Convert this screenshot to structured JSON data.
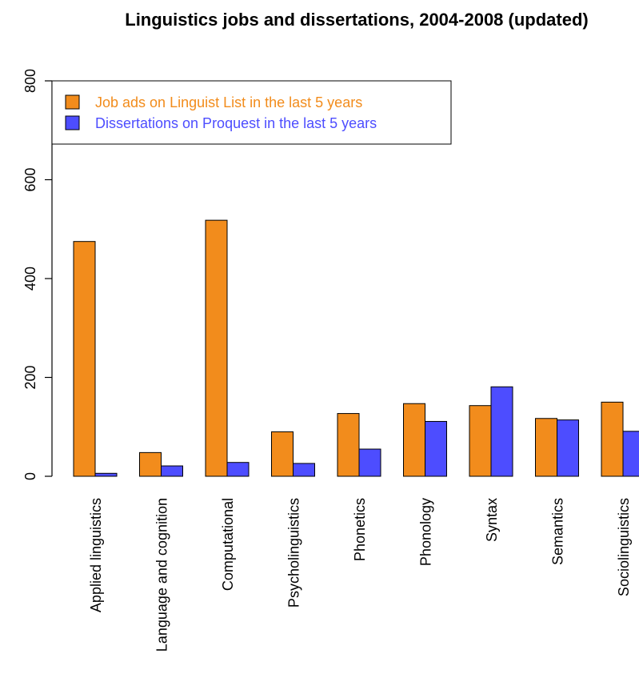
{
  "chart_data": {
    "type": "bar",
    "title": "Linguistics jobs and dissertations, 2004-2008 (updated)",
    "xlabel": "",
    "ylabel": "",
    "ylim": [
      0,
      800
    ],
    "yticks": [
      "0",
      "200",
      "400",
      "600",
      "800"
    ],
    "grid": false,
    "legend_position": "top-left",
    "categories": [
      "Applied linguistics",
      "Language and cognition",
      "Computational",
      "Psycholinguistics",
      "Phonetics",
      "Phonology",
      "Syntax",
      "Semantics",
      "Sociolinguistics"
    ],
    "series": [
      {
        "name": "Job ads on Linguist List in the last 5 years",
        "color": "#f28c1c",
        "values": [
          475,
          48,
          518,
          90,
          127,
          147,
          143,
          117,
          150
        ]
      },
      {
        "name": "Dissertations on Proquest in the last 5 years",
        "color": "#4d4dff",
        "values": [
          6,
          21,
          28,
          26,
          55,
          111,
          181,
          114,
          91
        ]
      }
    ]
  }
}
